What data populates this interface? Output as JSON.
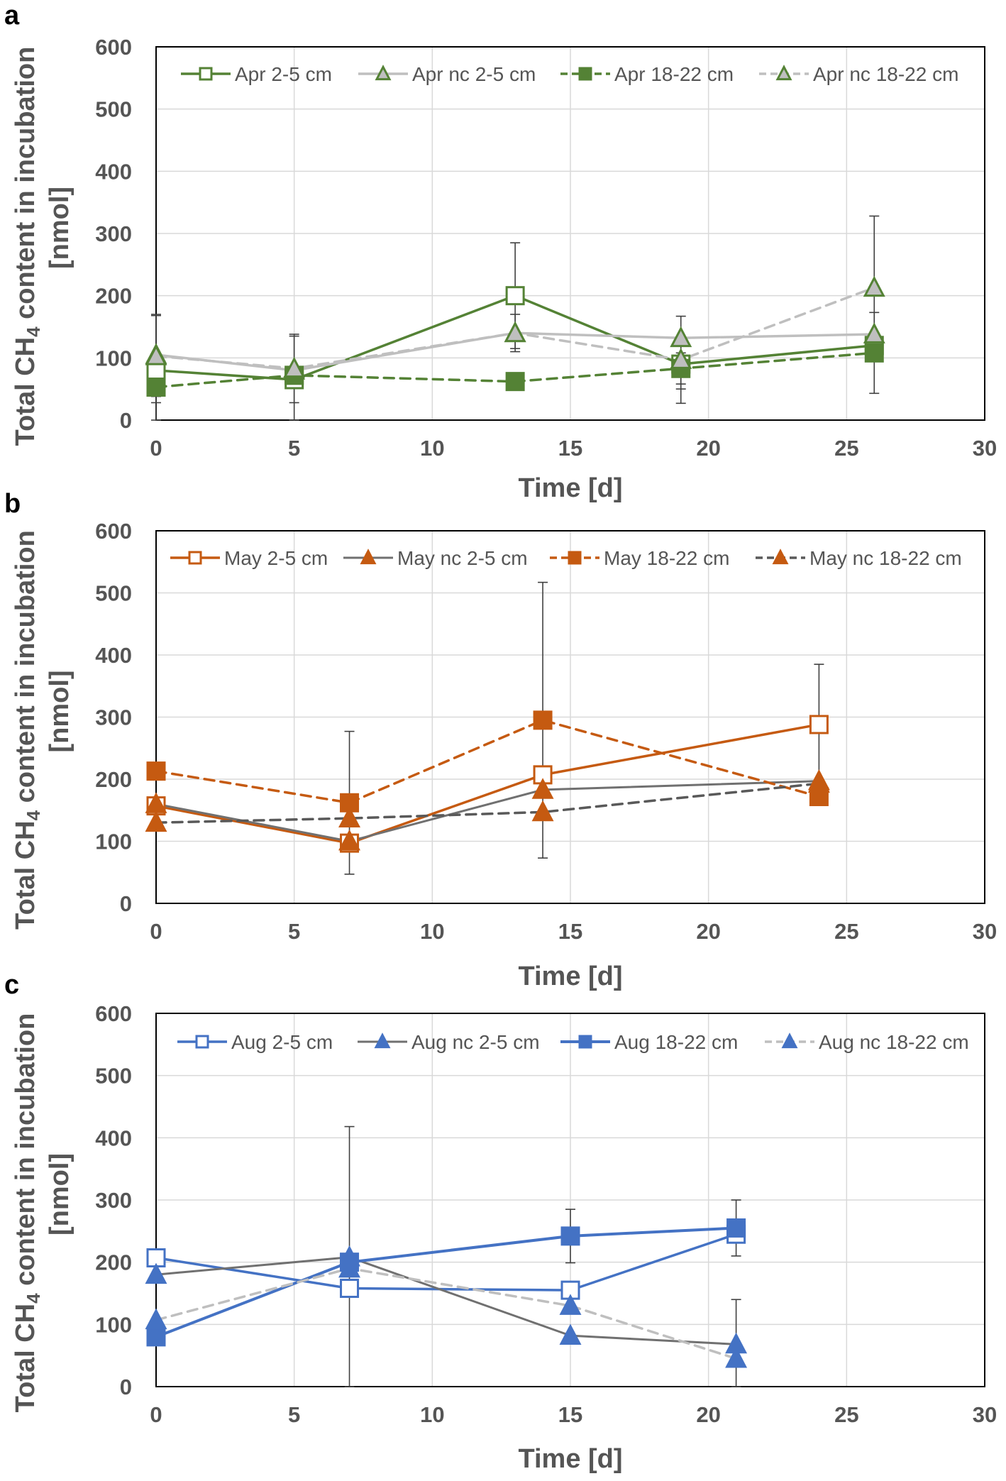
{
  "chart_data": [
    {
      "type": "line",
      "panel_label": "a",
      "ylabel_main": "Total CH",
      "ylabel_sub": "4",
      "ylabel_rest": " content in incubation",
      "ylabel_line2": "[nmol]",
      "xlabel": "Time [d]",
      "xlim": [
        0,
        30
      ],
      "ylim": [
        0,
        600
      ],
      "xticks": [
        0,
        5,
        10,
        15,
        20,
        25,
        30
      ],
      "yticks": [
        0,
        100,
        200,
        300,
        400,
        500,
        600
      ],
      "grid": true,
      "legend_position": "top",
      "series": [
        {
          "name": "Apr 2-5 cm",
          "color": "#548235",
          "dash": "solid",
          "width": 3.5,
          "marker": "square",
          "fill": "open",
          "x": [
            0,
            5,
            13,
            19,
            26
          ],
          "y": [
            80,
            65,
            200,
            90,
            120
          ],
          "err": [
            90,
            70,
            85,
            40,
            0
          ]
        },
        {
          "name": "Apr nc 2-5 cm",
          "color": "#bfbfbf",
          "marker_color": "#548235",
          "dash": "solid",
          "width": 3.5,
          "marker": "triangle",
          "fill": "gray",
          "x": [
            0,
            5,
            13,
            19,
            26
          ],
          "y": [
            105,
            80,
            140,
            132,
            138
          ],
          "err": [
            0,
            0,
            0,
            0,
            0
          ]
        },
        {
          "name": "Apr 18-22 cm",
          "color": "#548235",
          "dash": "dashed",
          "width": 3.5,
          "marker": "square",
          "fill": "filled",
          "x": [
            0,
            5,
            13,
            19,
            26
          ],
          "y": [
            53,
            72,
            62,
            83,
            108
          ],
          "err": [
            25,
            0,
            0,
            25,
            65
          ]
        },
        {
          "name": "Apr nc 18-22 cm",
          "color": "#bfbfbf",
          "marker_color": "#548235",
          "dash": "dashed",
          "width": 3.5,
          "marker": "triangle",
          "fill": "gray",
          "x": [
            0,
            5,
            13,
            19,
            26
          ],
          "y": [
            103,
            83,
            140,
            97,
            213
          ],
          "err": [
            65,
            55,
            30,
            70,
            115
          ]
        }
      ]
    },
    {
      "type": "line",
      "panel_label": "b",
      "ylabel_main": "Total CH",
      "ylabel_sub": "4",
      "ylabel_rest": " content in incubation",
      "ylabel_line2": "[nmol]",
      "xlabel": "Time [d]",
      "xlim": [
        0,
        30
      ],
      "ylim": [
        0,
        600
      ],
      "xticks": [
        0,
        5,
        10,
        15,
        20,
        25,
        30
      ],
      "yticks": [
        0,
        100,
        200,
        300,
        400,
        500,
        600
      ],
      "grid": true,
      "legend_position": "top",
      "series": [
        {
          "name": "May 2-5 cm",
          "color": "#c55a11",
          "dash": "solid",
          "width": 3.5,
          "marker": "square",
          "fill": "open",
          "x": [
            0,
            7,
            14,
            24
          ],
          "y": [
            157,
            97,
            207,
            288
          ],
          "err": [
            0,
            0,
            0,
            97
          ]
        },
        {
          "name": "May nc 2-5 cm",
          "color": "#707070",
          "marker_color": "#c55a11",
          "dash": "solid",
          "width": 3,
          "marker": "triangle",
          "fill": "filled",
          "x": [
            0,
            7,
            14,
            24
          ],
          "y": [
            160,
            100,
            183,
            197
          ],
          "err": [
            0,
            0,
            0,
            0
          ]
        },
        {
          "name": "May 18-22 cm",
          "color": "#c55a11",
          "dash": "dashed",
          "width": 3.5,
          "marker": "square",
          "fill": "filled",
          "x": [
            0,
            7,
            14,
            24
          ],
          "y": [
            213,
            162,
            295,
            172
          ],
          "err": [
            0,
            115,
            222,
            0
          ]
        },
        {
          "name": "May nc 18-22 cm",
          "color": "#595959",
          "marker_color": "#c55a11",
          "dash": "dashed",
          "width": 3.5,
          "marker": "triangle",
          "fill": "filled",
          "x": [
            0,
            7,
            14,
            24
          ],
          "y": [
            130,
            137,
            147,
            193
          ],
          "err": [
            0,
            0,
            0,
            0
          ]
        }
      ]
    },
    {
      "type": "line",
      "panel_label": "c",
      "ylabel_main": "Total CH",
      "ylabel_sub": "4",
      "ylabel_rest": " content in incubation",
      "ylabel_line2": "[nmol]",
      "xlabel": "Time [d]",
      "xlim": [
        0,
        30
      ],
      "ylim": [
        0,
        600
      ],
      "xticks": [
        0,
        5,
        10,
        15,
        20,
        25,
        30
      ],
      "yticks": [
        0,
        100,
        200,
        300,
        400,
        500,
        600
      ],
      "grid": true,
      "legend_position": "top",
      "series": [
        {
          "name": "Aug 2-5 cm",
          "color": "#4472c4",
          "dash": "solid",
          "width": 3.5,
          "marker": "square",
          "fill": "open",
          "x": [
            0,
            7,
            15,
            21
          ],
          "y": [
            207,
            158,
            155,
            245
          ],
          "err": [
            0,
            0,
            0,
            0
          ]
        },
        {
          "name": "Aug nc 2-5 cm",
          "color": "#707070",
          "marker_color": "#4472c4",
          "dash": "solid",
          "width": 3,
          "marker": "triangle",
          "fill": "filled",
          "x": [
            0,
            7,
            15,
            21
          ],
          "y": [
            180,
            208,
            82,
            68
          ],
          "err": [
            0,
            210,
            0,
            0
          ]
        },
        {
          "name": "Aug 18-22 cm",
          "color": "#4472c4",
          "dash": "solid",
          "width": 4,
          "marker": "square",
          "fill": "filled",
          "x": [
            0,
            7,
            15,
            21
          ],
          "y": [
            80,
            200,
            242,
            255
          ],
          "err": [
            0,
            0,
            43,
            45
          ]
        },
        {
          "name": "Aug nc 18-22 cm",
          "color": "#bfbfbf",
          "marker_color": "#4472c4",
          "dash": "dashed",
          "width": 3.5,
          "marker": "triangle",
          "fill": "filled",
          "x": [
            0,
            7,
            15,
            21
          ],
          "y": [
            107,
            190,
            130,
            45
          ],
          "err": [
            0,
            0,
            0,
            95
          ]
        }
      ]
    }
  ]
}
